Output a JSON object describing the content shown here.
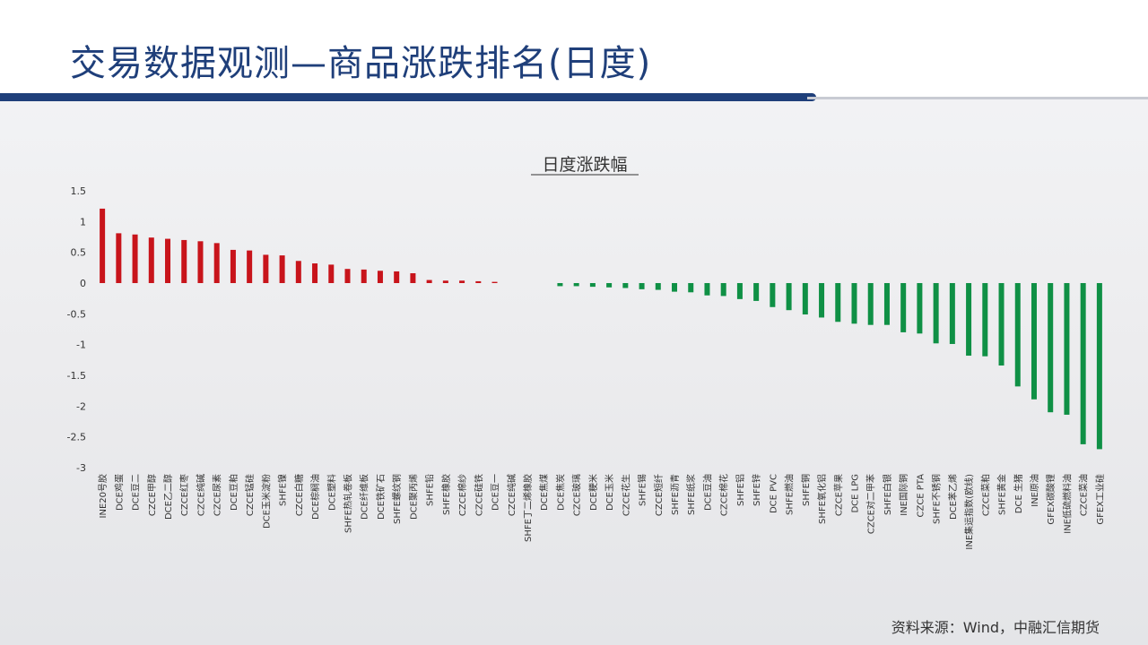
{
  "page": {
    "title": "交易数据观测—商品涨跌排名(日度)",
    "source": "资料来源：Wind，中融汇信期货"
  },
  "colors": {
    "up": "#c8141b",
    "down": "#0f9045",
    "title": "#1f3f7a"
  },
  "chart_data": {
    "type": "bar",
    "title": "日度涨跌幅",
    "xlabel": "",
    "ylabel": "",
    "ylim": [
      -3,
      1.5
    ],
    "yticks": [
      1.5,
      1,
      0.5,
      0,
      -0.5,
      -1,
      -1.5,
      -2,
      -2.5,
      -3
    ],
    "grid": false,
    "legend": "none",
    "categories": [
      "INE20号胶",
      "DCE鸡蛋",
      "DCE豆二",
      "CZCE甲醇",
      "DCE乙二醇",
      "CZCE红枣",
      "CZCE纯碱",
      "CZCE尿素",
      "DCE豆粕",
      "CZCE锰硅",
      "DCE玉米淀粉",
      "SHFE镍",
      "CZCE白糖",
      "DCE棕榈油",
      "DCE塑料",
      "SHFE热轧卷板",
      "DCE纤维板",
      "DCE铁矿石",
      "SHFE螺纹钢",
      "DCE聚丙烯",
      "SHFE铅",
      "SHFE橡胶",
      "CZCE棉纱",
      "CZCE硅铁",
      "DCE豆一",
      "CZCE纯碱",
      "SHFE丁二烯橡胶",
      "DCE焦煤",
      "DCE焦炭",
      "CZCE玻璃",
      "DCE粳米",
      "DCE玉米",
      "CZCE花生",
      "SHFE锡",
      "CZCE短纤",
      "SHFE沥青",
      "SHFE纸浆",
      "DCE豆油",
      "CZCE棉花",
      "SHFE铝",
      "SHFE锌",
      "DCE PVC",
      "SHFE燃油",
      "SHFE铜",
      "SHFE氧化铝",
      "CZCE苹果",
      "DCE LPG",
      "CZCE对二甲苯",
      "SHFE白银",
      "INE国际铜",
      "CZCE PTA",
      "SHFE不锈钢",
      "DCE苯乙烯",
      "INE集运指数(欧线)",
      "CZCE菜粕",
      "SHFE黄金",
      "DCE 生猪",
      "INE原油",
      "GFEX碳酸锂",
      "INE低硫燃料油",
      "CZCE菜油",
      "GFEX工业硅"
    ],
    "values": [
      1.21,
      0.81,
      0.79,
      0.74,
      0.72,
      0.7,
      0.68,
      0.65,
      0.54,
      0.53,
      0.46,
      0.45,
      0.36,
      0.32,
      0.3,
      0.23,
      0.22,
      0.2,
      0.19,
      0.16,
      0.05,
      0.04,
      0.04,
      0.03,
      0.02,
      0,
      0,
      0,
      -0.05,
      -0.05,
      -0.06,
      -0.07,
      -0.08,
      -0.1,
      -0.11,
      -0.14,
      -0.15,
      -0.2,
      -0.21,
      -0.26,
      -0.29,
      -0.39,
      -0.44,
      -0.51,
      -0.56,
      -0.63,
      -0.66,
      -0.68,
      -0.68,
      -0.8,
      -0.82,
      -0.98,
      -0.99,
      -1.18,
      -1.19,
      -1.34,
      -1.68,
      -1.89,
      -2.1,
      -2.14,
      -2.62,
      -2.7
    ]
  }
}
